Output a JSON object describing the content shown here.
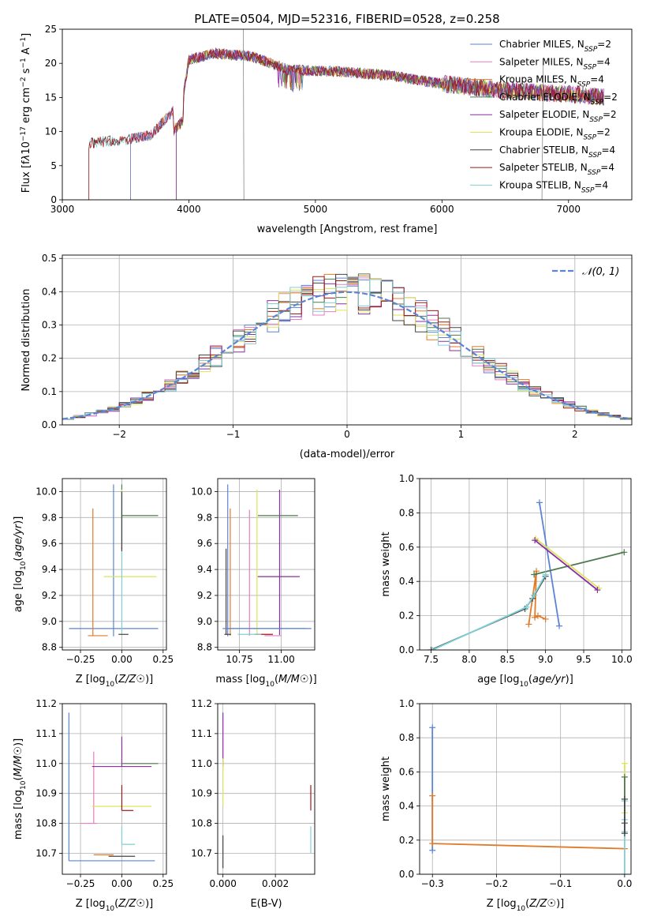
{
  "colors": {
    "Chabrier MILES": "#5b84d6",
    "Salpeter MILES": "#e67fc0",
    "Kroupa MILES": "#e07b2a",
    "Chabrier ELODIE": "#4f7a4f",
    "Salpeter ELODIE": "#8b2fa6",
    "Kroupa ELODIE": "#dde35c",
    "Chabrier STELIB": "#444444",
    "Salpeter STELIB": "#a01818",
    "Kroupa STELIB": "#7fcfd6",
    "gauss": "#5b84d6"
  },
  "chart_data": [
    {
      "id": "spectrum",
      "type": "line",
      "title": "PLATE=0504, MJD=52316, FIBERID=0528, z=0.258",
      "xlabel": "wavelength [Angstrom, rest frame]",
      "ylabel_html": "Flux [f<tspan font-style=\"italic\">λ</tspan>10<tspan baseline-shift=\"super\" font-size=\"9\">−17</tspan> erg cm<tspan baseline-shift=\"super\" font-size=\"9\">−2</tspan> s<tspan baseline-shift=\"super\" font-size=\"9\">−1</tspan> A<tspan baseline-shift=\"super\" font-size=\"9\">−1</tspan>]",
      "xlim": [
        3000,
        7500
      ],
      "ylim": [
        0,
        25
      ],
      "xticks": [
        3000,
        4000,
        5000,
        6000,
        7000
      ],
      "yticks": [
        0,
        5,
        10,
        15,
        20,
        25
      ],
      "grid": false,
      "legend_position": "top-right",
      "legend": [
        {
          "label": "Chabrier MILES, N",
          "sub": "SSP",
          "suffix": "=2",
          "series": "Chabrier MILES"
        },
        {
          "label": "Salpeter MILES, N",
          "sub": "SSP",
          "suffix": "=4",
          "series": "Salpeter MILES"
        },
        {
          "label": "Kroupa MILES, N",
          "sub": "SSP",
          "suffix": "=4",
          "series": "Kroupa MILES"
        },
        {
          "label": "Chabrier ELODIE, N",
          "sub": "SSP",
          "suffix": "=2",
          "series": "Chabrier ELODIE"
        },
        {
          "label": "Salpeter ELODIE, N",
          "sub": "SSP",
          "suffix": "=2",
          "series": "Salpeter ELODIE"
        },
        {
          "label": "Kroupa ELODIE, N",
          "sub": "SSP",
          "suffix": "=2",
          "series": "Kroupa ELODIE"
        },
        {
          "label": "Chabrier STELIB, N",
          "sub": "SSP",
          "suffix": "=4",
          "series": "Chabrier STELIB"
        },
        {
          "label": "Salpeter STELIB, N",
          "sub": "SSP",
          "suffix": "=4",
          "series": "Salpeter STELIB"
        },
        {
          "label": "Kroupa STELIB, N",
          "sub": "SSP",
          "suffix": "=4",
          "series": "Kroupa STELIB"
        }
      ],
      "continuum": [
        [
          3210,
          8.3
        ],
        [
          3500,
          8.8
        ],
        [
          3700,
          9.5
        ],
        [
          3850,
          12.5
        ],
        [
          3950,
          14.5
        ],
        [
          4000,
          20.5
        ],
        [
          4200,
          21.5
        ],
        [
          4500,
          21.0
        ],
        [
          4800,
          19.0
        ],
        [
          5200,
          18.8
        ],
        [
          5600,
          18.2
        ],
        [
          6000,
          17.0
        ],
        [
          6500,
          16.0
        ],
        [
          7000,
          15.5
        ],
        [
          7280,
          15.0
        ]
      ],
      "series_starts": [
        {
          "series": "Chabrier STELIB",
          "start": 3210
        },
        {
          "series": "Kroupa STELIB",
          "start": 3210
        },
        {
          "series": "Kroupa MILES",
          "start": 3540
        },
        {
          "series": "Salpeter MILES",
          "start": 3540
        },
        {
          "series": "Chabrier MILES",
          "start": 3540
        },
        {
          "series": "Kroupa ELODIE",
          "start": 3900
        },
        {
          "series": "Chabrier ELODIE",
          "start": 3900
        },
        {
          "series": "Salpeter ELODIE",
          "start": 3900
        },
        {
          "series": "Salpeter STELIB",
          "start": 3210
        }
      ],
      "noise_spikes": [
        [
          4430,
          25
        ],
        [
          4435,
          0
        ],
        [
          6790,
          0
        ],
        [
          6800,
          20
        ]
      ]
    },
    {
      "id": "residuals",
      "type": "histogram",
      "xlabel": "(data-model)/error",
      "ylabel": "Normed distribution",
      "xlim": [
        -2.5,
        2.5
      ],
      "ylim": [
        0,
        0.51
      ],
      "xticks": [
        -2,
        -1,
        0,
        1,
        2
      ],
      "yticks": [
        0.0,
        0.1,
        0.2,
        0.3,
        0.4,
        0.5
      ],
      "bin_width": 0.1,
      "grid": true,
      "legend_position": "top-right",
      "legend": [
        {
          "label": "𝒩(0, 1)",
          "series": "gauss"
        }
      ]
    },
    {
      "id": "age-vs-Z",
      "type": "errorbar",
      "xlabel": "Z [log10(Z/Z☉)]",
      "ylabel": "age  [log10(age/yr)]",
      "xlim": [
        -0.36,
        0.27
      ],
      "ylim": [
        8.78,
        10.1
      ],
      "xticks": [
        -0.25,
        0.0,
        0.25
      ],
      "yticks": [
        8.8,
        9.0,
        9.2,
        9.4,
        9.6,
        9.8,
        10.0
      ],
      "grid": true,
      "points": [
        {
          "series": "Chabrier MILES",
          "x": -0.05,
          "xerr": [
            0.27,
            0.27
          ],
          "y": 8.945,
          "yerr": [
            0.06,
            1.11
          ]
        },
        {
          "series": "Kroupa MILES",
          "x": -0.175,
          "xerr": [
            0.03,
            0.09
          ],
          "y": 8.89,
          "yerr": [
            0.0,
            0.98
          ]
        },
        {
          "series": "Chabrier ELODIE",
          "x": 0.0,
          "xerr": [
            0.0,
            0.22
          ],
          "y": 9.815,
          "yerr": [
            0.26,
            0.24
          ]
        },
        {
          "series": "Kroupa ELODIE",
          "x": 0.0,
          "xerr": [
            0.11,
            0.21
          ],
          "y": 9.345,
          "yerr": [
            0.0,
            0.67
          ]
        },
        {
          "series": "Kroupa STELIB",
          "x": 0.0,
          "xerr": [
            0.0,
            0.0
          ],
          "y": 9.45,
          "yerr": [
            0.55,
            0.55
          ]
        },
        {
          "series": "Chabrier STELIB",
          "x": 0.0,
          "xerr": [
            0.0,
            0.0
          ],
          "y": 9.55,
          "yerr": [
            0.01,
            0.45
          ]
        },
        {
          "series": "Salpeter STELIB",
          "x": 0.0,
          "xerr": [
            0.0,
            0.0
          ],
          "y": 9.56,
          "yerr": [
            0.0,
            0.01
          ]
        },
        {
          "series": "Chabrier STELIB",
          "x": -0.01,
          "xerr": [
            0.01,
            0.05
          ],
          "y": 8.9,
          "yerr": [
            0.0,
            0.0
          ]
        }
      ]
    },
    {
      "id": "age-vs-mass",
      "type": "errorbar",
      "xlabel": "mass [log10(M/M☉)]",
      "ylabel": "",
      "xlim": [
        10.62,
        11.2
      ],
      "ylim": [
        8.78,
        10.1
      ],
      "xticks": [
        10.75,
        11.0
      ],
      "xtick_labels": [
        "10.75",
        "11.00"
      ],
      "yticks": [
        8.8,
        9.0,
        9.2,
        9.4,
        9.6,
        9.8,
        10.0
      ],
      "grid": true,
      "points": [
        {
          "series": "Chabrier MILES",
          "x": 10.68,
          "xerr": [
            0.01,
            0.5
          ],
          "y": 8.945,
          "yerr": [
            0.06,
            1.11
          ]
        },
        {
          "series": "Kroupa MILES",
          "x": 10.695,
          "xerr": [
            0.0,
            0.0
          ],
          "y": 8.89,
          "yerr": [
            0.0,
            0.98
          ]
        },
        {
          "series": "Chabrier STELIB",
          "x": 10.67,
          "xerr": [
            0.0,
            0.0
          ],
          "y": 8.9,
          "yerr": [
            0.0,
            0.66
          ]
        },
        {
          "series": "Salpeter MILES",
          "x": 10.81,
          "xerr": [
            0.0,
            0.0
          ],
          "y": 8.89,
          "yerr": [
            0.0,
            0.97
          ]
        },
        {
          "series": "Kroupa ELODIE",
          "x": 10.855,
          "xerr": [
            0.0,
            0.2
          ],
          "y": 9.345,
          "yerr": [
            0.45,
            0.67
          ]
        },
        {
          "series": "Salpeter ELODIE",
          "x": 10.99,
          "xerr": [
            0.13,
            0.12
          ],
          "y": 9.345,
          "yerr": [
            0.45,
            0.67
          ]
        },
        {
          "series": "Chabrier ELODIE",
          "x": 11.0,
          "xerr": [
            0.14,
            0.1
          ],
          "y": 9.815,
          "yerr": [
            0.0,
            0.0
          ]
        },
        {
          "series": "Salpeter STELIB",
          "x": 10.84,
          "xerr": [
            0.0,
            0.11
          ],
          "y": 8.9,
          "yerr": [
            0.0,
            0.0
          ]
        },
        {
          "series": "Salpeter MILES",
          "x": 10.9,
          "xerr": [
            0.0,
            0.1
          ],
          "y": 8.89,
          "yerr": [
            0.0,
            0.0
          ]
        },
        {
          "series": "Kroupa STELIB",
          "x": 10.8,
          "xerr": [
            0.06,
            0.08
          ],
          "y": 8.9,
          "yerr": [
            0.0,
            0.0
          ]
        },
        {
          "series": "Chabrier STELIB",
          "x": 10.7,
          "xerr": [
            0.04,
            0.0
          ],
          "y": 8.9,
          "yerr": [
            0.0,
            0.0
          ]
        },
        {
          "series": "Chabrier MILES",
          "x": 10.85,
          "xerr": [
            0.2,
            0.3
          ],
          "y": 8.945,
          "yerr": [
            0.0,
            0.0
          ]
        }
      ]
    },
    {
      "id": "weight-vs-age",
      "type": "line",
      "xlabel": "age  [log10(age/yr)]",
      "ylabel": "mass weight",
      "xlim": [
        7.35,
        10.12
      ],
      "ylim": [
        0,
        1
      ],
      "xticks": [
        7.5,
        8.0,
        8.5,
        9.0,
        9.5,
        10.0
      ],
      "yticks": [
        0.0,
        0.2,
        0.4,
        0.6,
        0.8,
        1.0
      ],
      "grid": true,
      "series": [
        {
          "name": "Chabrier MILES",
          "x": [
            8.92,
            9.18
          ],
          "y": [
            0.86,
            0.14
          ]
        },
        {
          "name": "Kroupa MILES",
          "x": [
            8.78,
            8.88,
            8.86,
            8.9,
            9.0
          ],
          "y": [
            0.15,
            0.46,
            0.19,
            0.2,
            0.18
          ]
        },
        {
          "name": "Chabrier ELODIE",
          "x": [
            8.85,
            10.03
          ],
          "y": [
            0.44,
            0.57
          ]
        },
        {
          "name": "Kroupa ELODIE",
          "x": [
            8.87,
            9.7
          ],
          "y": [
            0.65,
            0.36
          ]
        },
        {
          "name": "Salpeter ELODIE",
          "x": [
            8.86,
            9.68
          ],
          "y": [
            0.64,
            0.35
          ]
        },
        {
          "name": "Chabrier STELIB",
          "x": [
            7.5,
            8.73,
            8.83,
            9.0
          ],
          "y": [
            0.0,
            0.24,
            0.3,
            0.43
          ]
        },
        {
          "name": "Kroupa STELIB",
          "x": [
            7.52,
            8.75,
            8.85,
            9.0
          ],
          "y": [
            0.0,
            0.25,
            0.32,
            0.44
          ]
        }
      ]
    },
    {
      "id": "mass-vs-Z",
      "type": "errorbar",
      "xlabel": "Z [log10(Z/Z☉)]",
      "ylabel": "mass [log10(M/M☉)]",
      "xlim": [
        -0.36,
        0.27
      ],
      "ylim": [
        10.63,
        11.2
      ],
      "xticks": [
        -0.25,
        0.0,
        0.25
      ],
      "yticks": [
        10.7,
        10.8,
        10.9,
        11.0,
        11.1,
        11.2
      ],
      "grid": true,
      "points": [
        {
          "series": "Chabrier MILES",
          "x": -0.32,
          "xerr": [
            0.0,
            0.52
          ],
          "y": 10.675,
          "yerr": [
            0.0,
            0.495
          ]
        },
        {
          "series": "Kroupa MILES",
          "x": -0.17,
          "xerr": [
            0.0,
            0.12
          ],
          "y": 10.695,
          "yerr": [
            0.0,
            0.0
          ]
        },
        {
          "series": "Salpeter MILES",
          "x": -0.17,
          "xerr": [
            0.08,
            0.02
          ],
          "y": 10.8,
          "yerr": [
            0.0,
            0.24
          ]
        },
        {
          "series": "Chabrier ELODIE",
          "x": 0.0,
          "xerr": [
            0.0,
            0.22
          ],
          "y": 11.0,
          "yerr": [
            0.0,
            0.0
          ]
        },
        {
          "series": "Salpeter ELODIE",
          "x": 0.0,
          "xerr": [
            0.18,
            0.18
          ],
          "y": 10.99,
          "yerr": [
            0.0,
            0.1
          ]
        },
        {
          "series": "Kroupa ELODIE",
          "x": 0.0,
          "xerr": [
            0.18,
            0.18
          ],
          "y": 10.857,
          "yerr": [
            0.0,
            0.0
          ]
        },
        {
          "series": "Salpeter STELIB",
          "x": 0.0,
          "xerr": [
            0.0,
            0.07
          ],
          "y": 10.843,
          "yerr": [
            0.0,
            0.085
          ]
        },
        {
          "series": "Kroupa STELIB",
          "x": 0.0,
          "xerr": [
            0.0,
            0.08
          ],
          "y": 10.73,
          "yerr": [
            0.0,
            0.06
          ]
        },
        {
          "series": "Chabrier STELIB",
          "x": 0.0,
          "xerr": [
            0.08,
            0.08
          ],
          "y": 10.69,
          "yerr": [
            0.0,
            0.0
          ]
        }
      ]
    },
    {
      "id": "mass-vs-ebv",
      "type": "errorbar",
      "xlabel": "E(B-V)",
      "ylabel": "",
      "xlim": [
        -0.0002,
        0.0035
      ],
      "ylim": [
        10.63,
        11.2
      ],
      "xticks": [
        0.0,
        0.002
      ],
      "xtick_labels": [
        "0.000",
        "0.002"
      ],
      "yticks": [
        10.7,
        10.8,
        10.9,
        11.0,
        11.1,
        11.2
      ],
      "grid": true,
      "points": [
        {
          "series": "Salpeter ELODIE",
          "x": 0.0,
          "y": 10.99,
          "yerr": [
            0.0,
            0.18
          ]
        },
        {
          "series": "Kroupa ELODIE",
          "x": 0.0,
          "y": 10.857,
          "yerr": [
            0.0,
            0.16
          ]
        },
        {
          "series": "Chabrier STELIB",
          "x": 0.0,
          "y": 10.69,
          "yerr": [
            0.04,
            0.07
          ]
        },
        {
          "series": "Salpeter STELIB",
          "x": 0.00335,
          "y": 10.843,
          "yerr": [
            0.0,
            0.085
          ]
        },
        {
          "series": "Kroupa STELIB",
          "x": 0.00335,
          "y": 10.7,
          "yerr": [
            0.0,
            0.09
          ]
        }
      ]
    },
    {
      "id": "weight-vs-Z",
      "type": "line",
      "xlabel": "Z [log10(Z/Z☉)]",
      "ylabel": "mass weight",
      "xlim": [
        -0.32,
        0.01
      ],
      "ylim": [
        0,
        1
      ],
      "xticks": [
        -0.3,
        -0.2,
        -0.1,
        0.0
      ],
      "yticks": [
        0.0,
        0.2,
        0.4,
        0.6,
        0.8,
        1.0
      ],
      "grid": true,
      "series": [
        {
          "name": "Chabrier MILES",
          "x": [
            -0.3,
            -0.3
          ],
          "y": [
            0.86,
            0.14
          ]
        },
        {
          "name": "Kroupa MILES",
          "x": [
            -0.3,
            -0.3,
            0.0
          ],
          "y": [
            0.46,
            0.18,
            0.15
          ]
        },
        {
          "name": "Kroupa ELODIE",
          "x": [
            0.0,
            0.0
          ],
          "y": [
            0.65,
            0.36
          ]
        },
        {
          "name": "Chabrier ELODIE",
          "x": [
            0.0,
            0.0
          ],
          "y": [
            0.57,
            0.44
          ]
        },
        {
          "name": "Kroupa STELIB",
          "x": [
            0.0,
            0.0,
            0.0,
            0.0
          ],
          "y": [
            0.43,
            0.32,
            0.25,
            0.0
          ]
        },
        {
          "name": "Chabrier STELIB",
          "x": [
            0.0,
            0.0,
            0.0
          ],
          "y": [
            0.44,
            0.3,
            0.24
          ]
        }
      ]
    }
  ]
}
